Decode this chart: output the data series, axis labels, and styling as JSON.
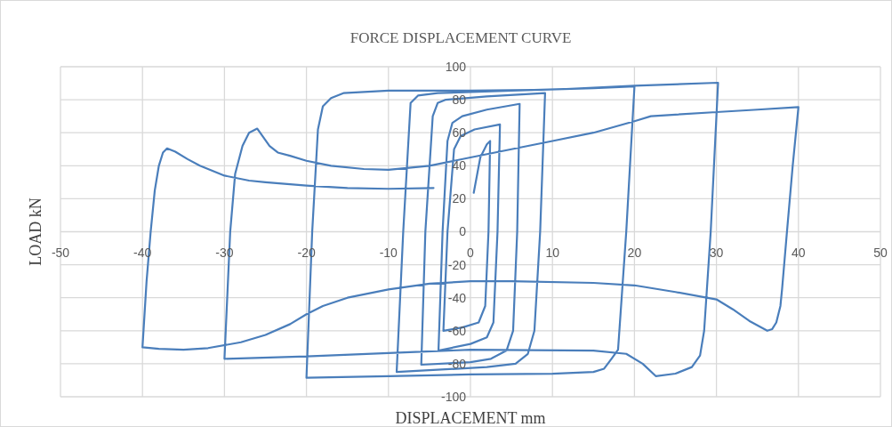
{
  "chart_data": {
    "type": "line",
    "title": "FORCE DISPLACEMENT CURVE",
    "xlabel": "DISPLACEMENT mm",
    "ylabel": "LOAD kN",
    "xlim": [
      -50,
      50
    ],
    "xticks": [
      -50,
      -40,
      -30,
      -20,
      -10,
      0,
      10,
      20,
      30,
      40,
      50
    ],
    "ylim": [
      -100,
      100
    ],
    "yticks": [
      -100,
      -80,
      -60,
      -40,
      -20,
      0,
      20,
      40,
      60,
      80,
      100
    ],
    "grid": true,
    "marker": "none",
    "line_style": "solid",
    "series": [
      {
        "color": "#4a7ebb",
        "x": [
          0.4,
          1.2,
          2.0,
          2.4,
          2.2,
          1.8,
          1.0,
          -1,
          -3.3,
          -2.8,
          -2.0,
          -1.2,
          0.5,
          3.6,
          3.3,
          2.8,
          2.0,
          0,
          -3.9,
          -3.4,
          -2.8,
          -2.2,
          -1,
          2,
          6,
          5.7,
          5.2,
          4.4,
          2.5,
          0,
          -6,
          -5.5,
          -4.6,
          -4,
          -3,
          2,
          9.1,
          8.5,
          7.8,
          7,
          5.5,
          2,
          -9,
          -8.2,
          -7.3,
          -6.4,
          -4,
          5,
          15,
          20,
          19,
          18,
          17.2,
          16.3,
          15,
          10,
          0,
          -10,
          -20,
          -19.3,
          -18.6,
          -18,
          -17,
          -15.5,
          -10,
          0,
          10,
          20,
          30.2,
          29.3,
          28.5,
          28,
          27,
          25,
          22.6,
          21,
          19,
          15,
          0,
          -10,
          -20,
          -30,
          -29.3,
          -28.7,
          -27.8,
          -27,
          -26,
          -25.5,
          -24.5,
          -23.5,
          -22,
          -20,
          -17,
          -13,
          -10,
          -5,
          0,
          5,
          10,
          15,
          20,
          22,
          25,
          30,
          35,
          40,
          39.3,
          38.6,
          38,
          37.8,
          37.3,
          36.8,
          36.2,
          34,
          32,
          30,
          25,
          20,
          15,
          5,
          0,
          -5,
          -10,
          -15,
          -18,
          -20,
          -22,
          -25,
          -28,
          -32,
          -35,
          -38,
          -40,
          -39.5,
          -39,
          -38.5,
          -38,
          -37.5,
          -37,
          -36,
          -34.5,
          -33,
          -30,
          -27,
          -25,
          -20,
          -15,
          -10,
          -4.5
        ],
        "values": [
          23.6,
          45,
          53,
          55,
          0,
          -45,
          -55,
          -58,
          -60,
          0,
          50,
          58,
          62,
          65,
          0,
          -55,
          -64,
          -68,
          -72,
          0,
          55,
          66,
          70,
          74,
          77.5,
          0,
          -60,
          -72,
          -77,
          -79,
          -80.6,
          0,
          70,
          78,
          80,
          82,
          84,
          0,
          -60,
          -74,
          -80,
          -82,
          -85,
          0,
          78,
          82.5,
          84,
          85.5,
          87,
          88,
          0,
          -71.5,
          -77,
          -83,
          -85,
          -86,
          -86.5,
          -87.5,
          -88.5,
          0,
          62,
          76,
          81,
          84,
          85.5,
          85.5,
          86,
          88.5,
          90.3,
          0,
          -60,
          -75,
          -82,
          -86,
          -87.5,
          -80,
          -74,
          -72,
          -71.5,
          -73.5,
          -75.5,
          -77,
          0,
          35,
          52,
          60,
          62.5,
          59,
          52,
          48,
          46,
          43,
          40,
          38,
          37.5,
          40,
          45,
          50,
          55,
          60,
          67,
          70,
          71,
          72.5,
          74,
          75.5,
          40,
          0,
          -35,
          -45,
          -55,
          -59,
          -60,
          -54,
          -47,
          -41,
          -36.5,
          -32.5,
          -31,
          -30,
          -30,
          -31.5,
          -35,
          -40,
          -45,
          -50,
          -56,
          -62.5,
          -67,
          -70.5,
          -71.5,
          -71,
          -70,
          -30,
          0,
          25,
          40,
          48,
          50.5,
          48.5,
          44,
          40,
          34,
          31,
          30,
          28,
          26.5,
          26,
          26.5
        ]
      }
    ]
  }
}
